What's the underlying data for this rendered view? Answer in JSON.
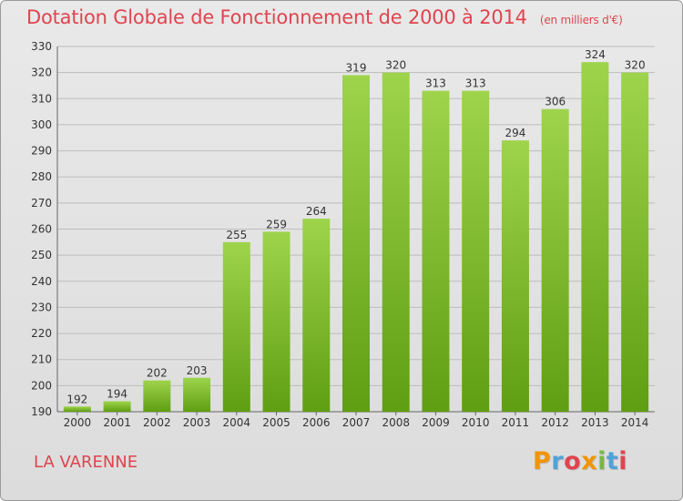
{
  "header": {
    "title": "Dotation Globale de Fonctionnement de 2000 à 2014",
    "unit": "(en milliers d'€)"
  },
  "footer": {
    "commune": "LA VARENNE",
    "logo": [
      "P",
      "r",
      "o",
      "x",
      "i",
      "t",
      "i"
    ],
    "logo_colors": [
      "#f29400",
      "#4fa3d8",
      "#e0444f",
      "#f29400",
      "#7ab648",
      "#4fa3d8",
      "#e0444f"
    ]
  },
  "colors": {
    "title": "#e0444f",
    "bar_top": "#9ed44c",
    "bar_bottom": "#5f9e12",
    "grid": "#bdbdbd"
  },
  "chart_data": {
    "type": "bar",
    "title": "Dotation Globale de Fonctionnement de 2000 à 2014",
    "subtitle": "(en milliers d'€)",
    "xlabel": "",
    "ylabel": "",
    "categories": [
      "2000",
      "2001",
      "2002",
      "2003",
      "2004",
      "2005",
      "2006",
      "2007",
      "2008",
      "2009",
      "2010",
      "2011",
      "2012",
      "2013",
      "2014"
    ],
    "values": [
      192,
      194,
      202,
      203,
      255,
      259,
      264,
      319,
      320,
      313,
      313,
      294,
      306,
      324,
      320
    ],
    "ylim": [
      190,
      330
    ],
    "yticks": [
      190,
      200,
      210,
      220,
      230,
      240,
      250,
      260,
      270,
      280,
      290,
      300,
      310,
      320,
      330
    ],
    "grid": true,
    "legend": "none"
  }
}
